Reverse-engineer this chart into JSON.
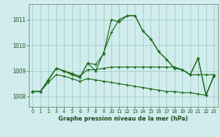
{
  "background_color": "#d0ecec",
  "grid_color": "#aacece",
  "line_color": "#1a6b1a",
  "title": "Graphe pression niveau de la mer (hPa)",
  "xlim": [
    -0.5,
    23.5
  ],
  "ylim": [
    1007.6,
    1011.6
  ],
  "yticks": [
    1008,
    1009,
    1010,
    1011
  ],
  "xticks": [
    0,
    1,
    2,
    3,
    4,
    5,
    6,
    7,
    8,
    9,
    10,
    11,
    12,
    13,
    14,
    15,
    16,
    17,
    18,
    19,
    20,
    21,
    22,
    23
  ],
  "series": [
    [
      1008.2,
      1008.2,
      1008.65,
      1009.1,
      1009.0,
      1008.85,
      1008.75,
      1009.3,
      1009.25,
      1009.65,
      1011.0,
      1010.9,
      1011.15,
      1011.15,
      1010.55,
      1010.25,
      1009.75,
      1009.45,
      1009.1,
      1009.05,
      1008.85,
      1009.5,
      1008.05,
      1008.8
    ],
    [
      1008.2,
      1008.2,
      1008.65,
      1009.1,
      1009.0,
      1008.9,
      1008.8,
      1009.05,
      1009.05,
      1009.1,
      1009.15,
      1009.15,
      1009.15,
      1009.15,
      1009.15,
      1009.15,
      1009.15,
      1009.15,
      1009.15,
      1009.05,
      1008.85,
      1008.85,
      1008.85,
      1008.85
    ],
    [
      1008.2,
      1008.2,
      1008.55,
      1008.85,
      1008.8,
      1008.7,
      1008.6,
      1008.7,
      1008.65,
      1008.6,
      1008.55,
      1008.5,
      1008.45,
      1008.4,
      1008.35,
      1008.3,
      1008.25,
      1008.2,
      1008.2,
      1008.15,
      1008.15,
      1008.1,
      1008.05,
      1008.8
    ],
    [
      1008.2,
      1008.2,
      1008.65,
      1009.1,
      1009.0,
      1008.85,
      1008.75,
      1009.3,
      1009.0,
      1009.7,
      1010.5,
      1011.0,
      1011.15,
      1011.15,
      1010.55,
      1010.25,
      1009.75,
      1009.45,
      1009.1,
      1009.05,
      1008.85,
      1009.5,
      1008.05,
      1008.8
    ]
  ]
}
